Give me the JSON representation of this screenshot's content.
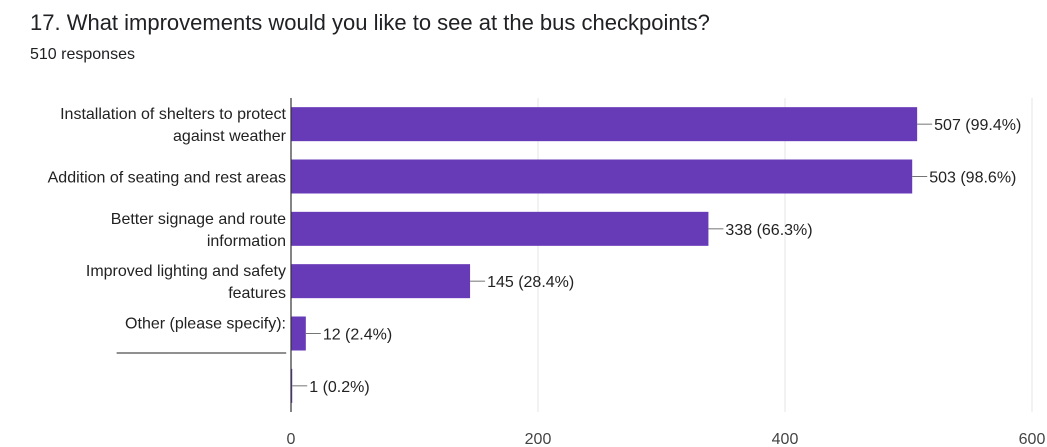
{
  "question": {
    "title": "17. What improvements would you like to see at the bus checkpoints?",
    "responses": "510 responses"
  },
  "colors": {
    "bar": "#673ab7",
    "grid": "#e6e6e6",
    "axis": "#333333"
  },
  "chart_data": {
    "type": "bar",
    "orientation": "horizontal",
    "categories": [
      [
        "Installation of shelters to protect",
        "against weather"
      ],
      [
        "Addition of seating and rest areas"
      ],
      [
        "Better signage and route",
        "information"
      ],
      [
        "Improved lighting and safety",
        "features"
      ],
      [
        "Other (please specify):",
        "___________________"
      ],
      [
        ""
      ]
    ],
    "values": [
      507,
      503,
      338,
      145,
      12,
      1
    ],
    "data_labels": [
      "507 (99.4%)",
      "503 (98.6%)",
      "338 (66.3%)",
      "145 (28.4%)",
      "12 (2.4%)",
      "1 (0.2%)"
    ],
    "xlim": [
      0,
      600
    ],
    "xticks": [
      0,
      200,
      400,
      600
    ],
    "grid": true
  }
}
